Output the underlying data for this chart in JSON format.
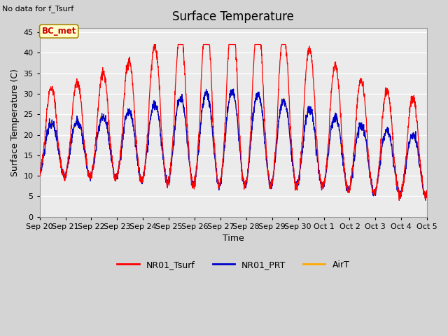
{
  "title": "Surface Temperature",
  "xlabel": "Time",
  "ylabel": "Surface Temperature (C)",
  "top_left_text": "No data for f_Tsurf",
  "annotation_text": "BC_met",
  "annotation_color": "#cc0000",
  "annotation_bg": "#ffffcc",
  "ylim": [
    0,
    46
  ],
  "yticks": [
    0,
    5,
    10,
    15,
    20,
    25,
    30,
    35,
    40,
    45
  ],
  "fig_bg_color": "#d4d4d4",
  "plot_bg_color": "#ebebeb",
  "line_colors": {
    "NR01_Tsurf": "#ff0000",
    "NR01_PRT": "#0000cc",
    "AirT": "#ffaa00"
  },
  "legend_labels": [
    "NR01_Tsurf",
    "NR01_PRT",
    "AirT"
  ],
  "num_points": 2000
}
